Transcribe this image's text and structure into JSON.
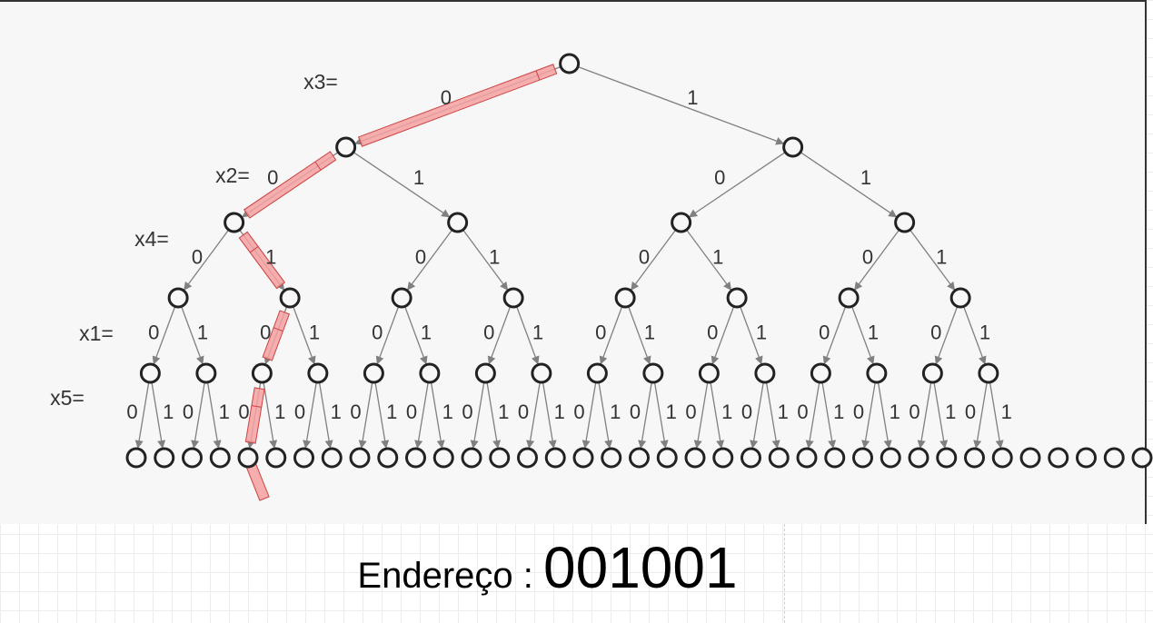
{
  "tree": {
    "levels": [
      {
        "variable": "x3=",
        "branch_labels": [
          {
            "text": "0"
          },
          {
            "text": "1"
          }
        ]
      },
      {
        "variable": "x2=",
        "branch_labels": [
          {
            "text": "0"
          },
          {
            "text": "1"
          },
          {
            "text": "0"
          },
          {
            "text": "1"
          }
        ]
      },
      {
        "variable": "x4=",
        "branch_labels": [
          {
            "text": "0"
          },
          {
            "text": "1"
          },
          {
            "text": "0"
          },
          {
            "text": "1"
          },
          {
            "text": "0"
          },
          {
            "text": "1"
          },
          {
            "text": "0"
          },
          {
            "text": "1"
          }
        ]
      },
      {
        "variable": "x1=",
        "branch_labels": [
          {
            "text": "0"
          },
          {
            "text": "1"
          },
          {
            "text": "0"
          },
          {
            "text": "1"
          },
          {
            "text": "0"
          },
          {
            "text": "1"
          },
          {
            "text": "0"
          },
          {
            "text": "1"
          },
          {
            "text": "0"
          },
          {
            "text": "1"
          },
          {
            "text": "0"
          },
          {
            "text": "1"
          },
          {
            "text": "0"
          },
          {
            "text": "1"
          },
          {
            "text": "0"
          },
          {
            "text": "1"
          }
        ]
      },
      {
        "variable": "x5=",
        "branch_labels": [
          {
            "text": "0"
          },
          {
            "text": "1"
          },
          {
            "text": "0"
          },
          {
            "text": "1"
          },
          {
            "text": "0"
          },
          {
            "text": "1"
          },
          {
            "text": "0"
          },
          {
            "text": "1"
          },
          {
            "text": "0"
          },
          {
            "text": "1"
          },
          {
            "text": "0"
          },
          {
            "text": "1"
          },
          {
            "text": "0"
          },
          {
            "text": "1"
          },
          {
            "text": "0"
          },
          {
            "text": "1"
          },
          {
            "text": "0"
          },
          {
            "text": "1"
          },
          {
            "text": "0"
          },
          {
            "text": "1"
          },
          {
            "text": "0"
          },
          {
            "text": "1"
          },
          {
            "text": "0"
          },
          {
            "text": "1"
          },
          {
            "text": "0"
          },
          {
            "text": "1"
          },
          {
            "text": "0"
          },
          {
            "text": "1"
          },
          {
            "text": "0"
          },
          {
            "text": "1"
          },
          {
            "text": "0"
          },
          {
            "text": "1"
          }
        ]
      }
    ],
    "highlighted_path": [
      0,
      0,
      1,
      0,
      0,
      1
    ],
    "highlight_color": "#f4a0a0",
    "line_color": "#808080",
    "node_color": "#222222"
  },
  "caption": {
    "label": "Endereço : ",
    "address": "001001"
  }
}
